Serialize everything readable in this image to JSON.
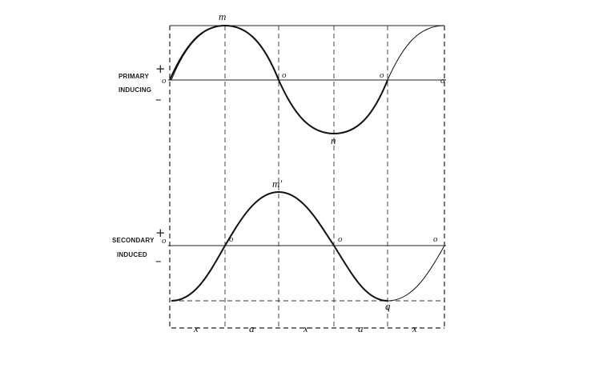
{
  "primary": {
    "label_line1": "PRIMARY",
    "label_line2": "INDUCING",
    "plus": "+",
    "minus": "–",
    "max_label": "m",
    "min_label": "n",
    "zero_labels": [
      "o",
      "o",
      "o",
      "o"
    ]
  },
  "secondary": {
    "label_line1": "SECONDARY",
    "label_line2": "INDUCED",
    "plus": "+",
    "minus": "–",
    "max_label": "m′",
    "min_label": "q",
    "zero_labels": [
      "o",
      "o",
      "o",
      "o"
    ]
  },
  "segments": [
    "x",
    "a",
    "x",
    "a",
    "x"
  ]
}
